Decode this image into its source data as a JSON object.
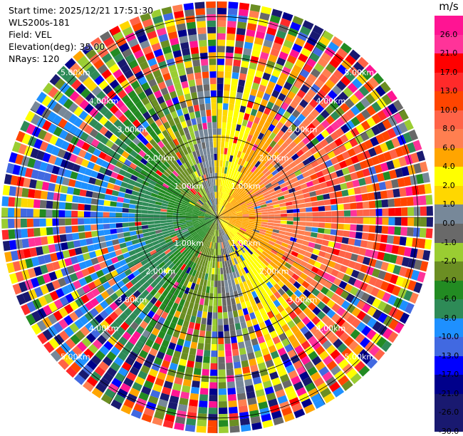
{
  "header": {
    "start_time": "Start time: 2025/12/21 17:51:30",
    "instrument": "WLS200s-181",
    "field": "Field: VEL",
    "elevation": "Elevation(deg): 35.00",
    "nrays": "NRays: 120"
  },
  "range_labels": [
    "1.00km",
    "2.00km",
    "3.00km",
    "4.00km",
    "5.00km"
  ],
  "range_rings_km": [
    1,
    2,
    3,
    4,
    5
  ],
  "max_range_km": 5,
  "colorbar": {
    "unit": "m/s",
    "labels": [
      "26.0",
      "21.0",
      "17.0",
      "13.0",
      "10.0",
      "8.0",
      "6.0",
      "4.0",
      "2.0",
      "1.0",
      "0.0",
      "-1.0",
      "-2.0",
      "-4.0",
      "-6.0",
      "-8.0",
      "-10.0",
      "-13.0",
      "-17.0",
      "-21.0",
      "-26.0",
      "-30.0"
    ],
    "colors": [
      "#ff1493",
      "#ff3399",
      "#ff0000",
      "#ff2a2a",
      "#ff4500",
      "#ff6347",
      "#ff7f50",
      "#ffa500",
      "#ffff00",
      "#ffd700",
      "#778899",
      "#696969",
      "#9acd32",
      "#6b8e23",
      "#228b22",
      "#2e8b57",
      "#1e90ff",
      "#4169e1",
      "#0000ff",
      "#00008b",
      "#191970",
      "#191970"
    ]
  }
}
